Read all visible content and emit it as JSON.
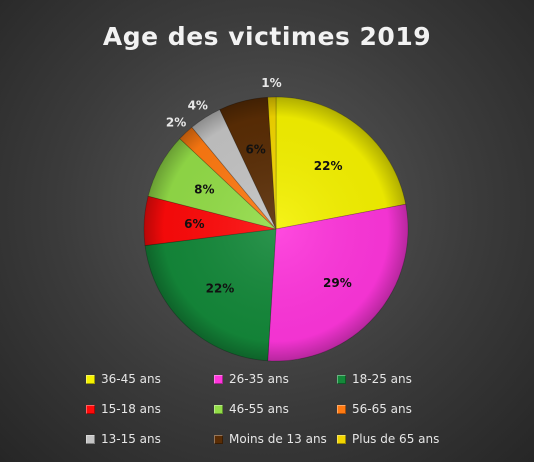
{
  "chart_data": {
    "type": "pie",
    "title": "Age des victimes 2019",
    "categories": [
      "36-45 ans",
      "26-35 ans",
      "18-25 ans",
      "15-18 ans",
      "46-55 ans",
      "56-65 ans",
      "13-15 ans",
      "Moins de 13 ans",
      "Plus de 65 ans"
    ],
    "values": [
      22,
      29,
      22,
      6,
      8,
      2,
      4,
      6,
      1
    ],
    "labels": [
      "22%",
      "29%",
      "22%",
      "6%",
      "8%",
      "2%",
      "4%",
      "6%",
      "1%"
    ],
    "colors": [
      "#f5f200",
      "#ff36dc",
      "#14893a",
      "#ff0a0a",
      "#93dd48",
      "#ff7a12",
      "#c4c4c4",
      "#5a2d05",
      "#f2d500"
    ],
    "legend_position": "bottom",
    "grid": false
  }
}
